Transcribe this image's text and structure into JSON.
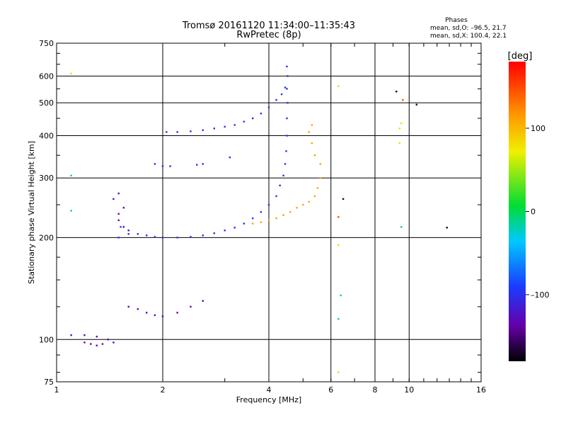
{
  "chart_data": {
    "type": "scatter",
    "title": "Tromsø 20161120 11:34:00–11:35:43",
    "subtitle": "RwPretec (8p)",
    "xlabel": "Frequency [MHz]",
    "ylabel": "Stationary phase Virtual Height [km]",
    "x_scale": "log",
    "y_scale": "log",
    "xlim": [
      1,
      16
    ],
    "ylim": [
      75,
      750
    ],
    "xticks": [
      1,
      2,
      4,
      6,
      8,
      10,
      16
    ],
    "yticks": [
      75,
      100,
      200,
      300,
      400,
      500,
      600,
      750
    ],
    "x_gridlines": [
      2,
      4,
      6,
      8,
      10
    ],
    "y_gridlines": [
      100,
      200,
      300,
      400,
      500,
      600
    ],
    "grid": true,
    "stats": {
      "heading": "Phases",
      "line_o": "mean, sd,O: –96.5, 21.7",
      "line_x": "mean, sd,X: 100.4, 22.1"
    },
    "colorbar": {
      "label": "[deg]",
      "min": -180,
      "max": 180,
      "ticks": [
        100,
        0,
        -100
      ],
      "tick_labels": [
        "100",
        "0",
        "–100"
      ],
      "colormap": "rainbow (black → purple → blue → cyan → green → yellow → orange → red)"
    },
    "series": [
      {
        "phase": -100,
        "points": [
          [
            1.5,
            200
          ],
          [
            1.52,
            215
          ],
          [
            1.6,
            205
          ],
          [
            1.7,
            205
          ],
          [
            1.8,
            203
          ],
          [
            1.9,
            201
          ],
          [
            2.0,
            200
          ],
          [
            2.2,
            200
          ],
          [
            2.4,
            201
          ],
          [
            2.6,
            203
          ],
          [
            2.8,
            206
          ],
          [
            3.0,
            210
          ],
          [
            3.2,
            214
          ],
          [
            3.4,
            220
          ],
          [
            3.6,
            228
          ],
          [
            3.8,
            238
          ],
          [
            4.0,
            250
          ],
          [
            4.2,
            265
          ],
          [
            4.3,
            285
          ],
          [
            4.4,
            305
          ],
          [
            4.45,
            330
          ],
          [
            4.48,
            360
          ],
          [
            4.5,
            400
          ],
          [
            4.5,
            450
          ],
          [
            4.52,
            500
          ],
          [
            4.5,
            550
          ],
          [
            4.52,
            600
          ],
          [
            4.5,
            640
          ],
          [
            2.05,
            410
          ],
          [
            2.2,
            410
          ],
          [
            2.4,
            412
          ],
          [
            2.6,
            415
          ],
          [
            2.8,
            420
          ],
          [
            3.0,
            425
          ],
          [
            3.2,
            430
          ],
          [
            3.4,
            440
          ],
          [
            3.6,
            450
          ],
          [
            3.8,
            465
          ],
          [
            4.0,
            485
          ],
          [
            4.2,
            510
          ],
          [
            4.35,
            530
          ],
          [
            4.45,
            555
          ],
          [
            1.9,
            330
          ],
          [
            2.0,
            325
          ],
          [
            2.1,
            325
          ],
          [
            2.5,
            328
          ],
          [
            2.6,
            330
          ],
          [
            3.1,
            345
          ]
        ]
      },
      {
        "phase": -135,
        "points": [
          [
            1.5,
            235
          ],
          [
            1.5,
            225
          ],
          [
            1.55,
            215
          ],
          [
            1.6,
            210
          ],
          [
            1.5,
            270
          ],
          [
            1.45,
            260
          ],
          [
            1.55,
            245
          ],
          [
            1.6,
            125
          ],
          [
            1.7,
            123
          ],
          [
            1.8,
            120
          ],
          [
            1.9,
            118
          ],
          [
            2.0,
            117
          ],
          [
            2.2,
            120
          ],
          [
            2.4,
            125
          ],
          [
            2.6,
            130
          ],
          [
            1.1,
            103
          ],
          [
            1.2,
            103
          ],
          [
            1.3,
            102
          ],
          [
            1.4,
            100
          ],
          [
            1.45,
            98
          ],
          [
            1.2,
            98
          ],
          [
            1.25,
            97
          ],
          [
            1.3,
            96
          ],
          [
            1.35,
            97
          ]
        ]
      },
      {
        "phase": 110,
        "points": [
          [
            3.6,
            220
          ],
          [
            3.8,
            222
          ],
          [
            4.0,
            225
          ],
          [
            4.2,
            228
          ],
          [
            4.4,
            233
          ],
          [
            4.6,
            238
          ],
          [
            4.8,
            245
          ],
          [
            5.0,
            250
          ],
          [
            5.2,
            255
          ],
          [
            5.4,
            265
          ],
          [
            5.5,
            280
          ],
          [
            5.6,
            300
          ],
          [
            5.6,
            330
          ],
          [
            5.4,
            350
          ],
          [
            5.3,
            380
          ],
          [
            5.2,
            410
          ],
          [
            5.3,
            430
          ]
        ]
      },
      {
        "phase": 60,
        "points": [
          [
            9.4,
            420
          ],
          [
            9.5,
            435
          ],
          [
            9.4,
            380
          ],
          [
            6.3,
            560
          ],
          [
            1.1,
            610
          ],
          [
            6.3,
            190
          ],
          [
            6.3,
            80
          ]
        ]
      },
      {
        "phase": 150,
        "points": [
          [
            6.3,
            230
          ],
          [
            9.6,
            510
          ]
        ]
      },
      {
        "phase": -20,
        "points": [
          [
            6.4,
            135
          ],
          [
            6.3,
            115
          ],
          [
            1.1,
            305
          ],
          [
            9.5,
            215
          ],
          [
            1.1,
            240
          ]
        ]
      },
      {
        "phase": -170,
        "points": [
          [
            6.5,
            260
          ],
          [
            12.8,
            214
          ],
          [
            10.5,
            494
          ],
          [
            9.2,
            540
          ]
        ]
      }
    ]
  }
}
